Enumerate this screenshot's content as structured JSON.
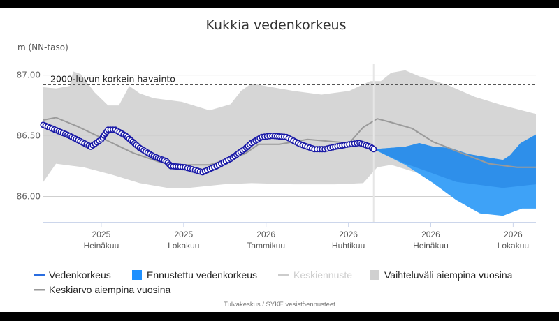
{
  "chart_data": {
    "type": "line",
    "title": "Kukkia vedenkorkeus",
    "ylabel": "m (NN-taso)",
    "ylim": [
      85.79,
      87.09
    ],
    "yticks": [
      {
        "v": 87.0,
        "label": "87.00"
      },
      {
        "v": 86.5,
        "label": "86.50"
      },
      {
        "v": 86.0,
        "label": "86.00"
      }
    ],
    "x_unit_note": "months relative to Heinäkuu 2025 (0)",
    "xlim": [
      -2.11,
      15.83
    ],
    "xticks": [
      {
        "x": 0,
        "year": "2025",
        "month": "Heinäkuu"
      },
      {
        "x": 3,
        "year": "2025",
        "month": "Lokakuu"
      },
      {
        "x": 6,
        "year": "2026",
        "month": "Tammikuu"
      },
      {
        "x": 9,
        "year": "2026",
        "month": "Huhtikuu"
      },
      {
        "x": 12,
        "year": "2026",
        "month": "Heinäkuu"
      },
      {
        "x": 15,
        "year": "2026",
        "month": "Lokakuu"
      }
    ],
    "current_date_x": 9.92,
    "reference_line": {
      "value": 86.92,
      "label": "2000-luvun korkein havainto"
    },
    "series": [
      {
        "name": "Vedenkorkeus",
        "color": "#1a1aa6",
        "points": [
          [
            -2.11,
            86.59
          ],
          [
            -1.15,
            86.5
          ],
          [
            -0.38,
            86.41
          ],
          [
            0,
            86.47
          ],
          [
            0.25,
            86.55
          ],
          [
            0.51,
            86.55
          ],
          [
            0.89,
            86.5
          ],
          [
            1.4,
            86.4
          ],
          [
            1.91,
            86.33
          ],
          [
            2.37,
            86.29
          ],
          [
            2.54,
            86.25
          ],
          [
            3.05,
            86.24
          ],
          [
            3.69,
            86.2
          ],
          [
            4.2,
            86.25
          ],
          [
            4.71,
            86.31
          ],
          [
            5.22,
            86.39
          ],
          [
            5.47,
            86.44
          ],
          [
            5.85,
            86.49
          ],
          [
            6.23,
            86.5
          ],
          [
            6.74,
            86.49
          ],
          [
            7.25,
            86.43
          ],
          [
            7.76,
            86.39
          ],
          [
            8.14,
            86.39
          ],
          [
            8.52,
            86.41
          ],
          [
            9.03,
            86.43
          ],
          [
            9.41,
            86.44
          ],
          [
            9.8,
            86.41
          ],
          [
            9.92,
            86.39
          ]
        ]
      },
      {
        "name": "Keskiarvo aiempina vuosina",
        "color": "#999999",
        "points": [
          [
            -2.11,
            86.63
          ],
          [
            -1.65,
            86.65
          ],
          [
            -0.89,
            86.58
          ],
          [
            0.13,
            86.47
          ],
          [
            1.15,
            86.36
          ],
          [
            2.16,
            86.28
          ],
          [
            3.0,
            86.26
          ],
          [
            3.94,
            86.26
          ],
          [
            5.22,
            86.35
          ],
          [
            5.73,
            86.43
          ],
          [
            6.49,
            86.43
          ],
          [
            7.51,
            86.47
          ],
          [
            9.03,
            86.44
          ],
          [
            9.54,
            86.57
          ],
          [
            10.05,
            86.64
          ],
          [
            10.56,
            86.61
          ],
          [
            11.32,
            86.56
          ],
          [
            12.09,
            86.45
          ],
          [
            13.1,
            86.36
          ],
          [
            14.12,
            86.27
          ],
          [
            15.14,
            86.24
          ],
          [
            15.83,
            86.24
          ]
        ]
      },
      {
        "name": "Vaihteluväli aiempina vuosina",
        "color": "#d6d6d6",
        "upper": [
          [
            -2.11,
            86.9
          ],
          [
            -1.65,
            86.89
          ],
          [
            -1.15,
            86.91
          ],
          [
            -1.02,
            87.03
          ],
          [
            -0.76,
            87.01
          ],
          [
            -0.25,
            86.86
          ],
          [
            0.25,
            86.75
          ],
          [
            0.64,
            86.75
          ],
          [
            1.02,
            86.91
          ],
          [
            1.4,
            86.85
          ],
          [
            1.91,
            86.81
          ],
          [
            2.93,
            86.78
          ],
          [
            3.94,
            86.71
          ],
          [
            4.71,
            86.76
          ],
          [
            5.09,
            86.87
          ],
          [
            5.47,
            86.93
          ],
          [
            5.98,
            86.91
          ],
          [
            7.0,
            86.87
          ],
          [
            8.02,
            86.84
          ],
          [
            9.03,
            86.87
          ],
          [
            9.8,
            86.95
          ],
          [
            10.18,
            86.95
          ],
          [
            10.56,
            87.02
          ],
          [
            11.07,
            87.04
          ],
          [
            11.58,
            86.99
          ],
          [
            12.6,
            86.92
          ],
          [
            13.61,
            86.82
          ],
          [
            14.63,
            86.75
          ],
          [
            15.83,
            86.68
          ]
        ],
        "lower": [
          [
            -2.11,
            86.12
          ],
          [
            -1.65,
            86.27
          ],
          [
            -0.64,
            86.24
          ],
          [
            0.38,
            86.18
          ],
          [
            1.4,
            86.11
          ],
          [
            2.42,
            86.07
          ],
          [
            3.18,
            86.07
          ],
          [
            4.45,
            86.1
          ],
          [
            5.47,
            86.11
          ],
          [
            7.0,
            86.1
          ],
          [
            8.52,
            86.1
          ],
          [
            9.54,
            86.11
          ],
          [
            10.05,
            86.24
          ],
          [
            10.56,
            86.26
          ],
          [
            11.58,
            86.19
          ],
          [
            12.85,
            86.13
          ],
          [
            14.12,
            86.11
          ],
          [
            15.83,
            86.09
          ]
        ]
      },
      {
        "name": "Ennustettu vedenkorkeus",
        "color": "#1e90ff",
        "upper": [
          [
            9.92,
            86.39
          ],
          [
            11.07,
            86.41
          ],
          [
            11.58,
            86.44
          ],
          [
            12.09,
            86.41
          ],
          [
            12.72,
            86.4
          ],
          [
            13.36,
            86.35
          ],
          [
            14.12,
            86.32
          ],
          [
            14.63,
            86.3
          ],
          [
            14.89,
            86.34
          ],
          [
            15.27,
            86.44
          ],
          [
            15.83,
            86.51
          ]
        ],
        "middle": [
          [
            9.92,
            86.39
          ],
          [
            11.07,
            86.27
          ],
          [
            11.58,
            86.23
          ],
          [
            12.93,
            86.12
          ],
          [
            14.63,
            86.07
          ],
          [
            15.83,
            86.1
          ]
        ],
        "lower": [
          [
            9.92,
            86.39
          ],
          [
            11.07,
            86.26
          ],
          [
            12.09,
            86.11
          ],
          [
            12.93,
            85.97
          ],
          [
            13.79,
            85.86
          ],
          [
            14.63,
            85.84
          ],
          [
            15.32,
            85.9
          ],
          [
            15.83,
            85.9
          ]
        ]
      }
    ],
    "legend": {
      "placement": "bottom",
      "items": [
        {
          "label": "Vedenkorkeus",
          "color": "#2a6de0",
          "kind": "line"
        },
        {
          "label": "Ennustettu vedenkorkeus",
          "color": "#1e90ff",
          "kind": "box"
        },
        {
          "label": "Keskiennuste",
          "color": "#cccccc",
          "kind": "line",
          "hidden": true
        },
        {
          "label": "Vaihteluväli aiempina vuosina",
          "color": "#d0d0d0",
          "kind": "box"
        },
        {
          "label": "Keskiarvo aiempina vuosina",
          "color": "#999999",
          "kind": "line"
        }
      ]
    },
    "credits": "Tulvakeskus / SYKE vesistöennusteet"
  }
}
